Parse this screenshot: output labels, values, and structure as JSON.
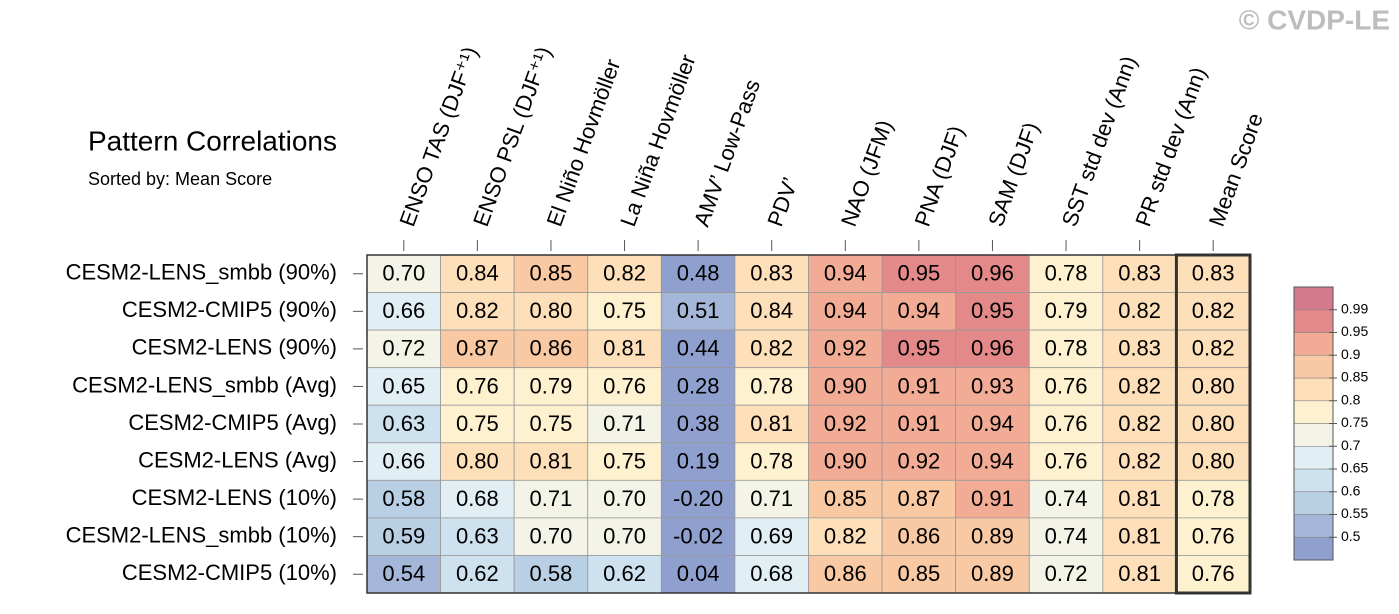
{
  "chart_data": {
    "type": "heatmap",
    "title": "Pattern Correlations",
    "subtitle": "Sorted by: Mean Score",
    "watermark": "© CVDP-LE",
    "categories": [
      "ENSO TAS (DJF⁺¹)",
      "ENSO PSL (DJF⁺¹)",
      "El Niño Hovmöller",
      "La Niña Hovmöller",
      "AMV’ Low-Pass",
      "PDV’",
      "NAO (JFM)",
      "PNA (DJF)",
      "SAM (DJF)",
      "SST std dev (Ann)",
      "PR std dev (Ann)",
      "Mean Score"
    ],
    "rows": [
      "CESM2-LENS_smbb (90%)",
      "CESM2-CMIP5 (90%)",
      "CESM2-LENS (90%)",
      "CESM2-LENS_smbb (Avg)",
      "CESM2-CMIP5 (Avg)",
      "CESM2-LENS (Avg)",
      "CESM2-LENS (10%)",
      "CESM2-LENS_smbb (10%)",
      "CESM2-CMIP5 (10%)"
    ],
    "values": [
      [
        0.7,
        0.84,
        0.85,
        0.82,
        0.48,
        0.83,
        0.94,
        0.95,
        0.96,
        0.78,
        0.83,
        0.83
      ],
      [
        0.66,
        0.82,
        0.8,
        0.75,
        0.51,
        0.84,
        0.94,
        0.94,
        0.95,
        0.79,
        0.82,
        0.82
      ],
      [
        0.72,
        0.87,
        0.86,
        0.81,
        0.44,
        0.82,
        0.92,
        0.95,
        0.96,
        0.78,
        0.83,
        0.82
      ],
      [
        0.65,
        0.76,
        0.79,
        0.76,
        0.28,
        0.78,
        0.9,
        0.91,
        0.93,
        0.76,
        0.82,
        0.8
      ],
      [
        0.63,
        0.75,
        0.75,
        0.71,
        0.38,
        0.81,
        0.92,
        0.91,
        0.94,
        0.76,
        0.82,
        0.8
      ],
      [
        0.66,
        0.8,
        0.81,
        0.75,
        0.19,
        0.78,
        0.9,
        0.92,
        0.94,
        0.76,
        0.82,
        0.8
      ],
      [
        0.58,
        0.68,
        0.71,
        0.7,
        -0.2,
        0.71,
        0.85,
        0.87,
        0.91,
        0.74,
        0.81,
        0.78
      ],
      [
        0.59,
        0.63,
        0.7,
        0.7,
        -0.02,
        0.69,
        0.82,
        0.86,
        0.89,
        0.74,
        0.81,
        0.76
      ],
      [
        0.54,
        0.62,
        0.58,
        0.62,
        0.04,
        0.68,
        0.86,
        0.85,
        0.89,
        0.72,
        0.81,
        0.76
      ]
    ],
    "value_labels": [
      [
        "0.70",
        "0.84",
        "0.85",
        "0.82",
        "0.48",
        "0.83",
        "0.94",
        "0.95",
        "0.96",
        "0.78",
        "0.83",
        "0.83"
      ],
      [
        "0.66",
        "0.82",
        "0.80",
        "0.75",
        "0.51",
        "0.84",
        "0.94",
        "0.94",
        "0.95",
        "0.79",
        "0.82",
        "0.82"
      ],
      [
        "0.72",
        "0.87",
        "0.86",
        "0.81",
        "0.44",
        "0.82",
        "0.92",
        "0.95",
        "0.96",
        "0.78",
        "0.83",
        "0.82"
      ],
      [
        "0.65",
        "0.76",
        "0.79",
        "0.76",
        "0.28",
        "0.78",
        "0.90",
        "0.91",
        "0.93",
        "0.76",
        "0.82",
        "0.80"
      ],
      [
        "0.63",
        "0.75",
        "0.75",
        "0.71",
        "0.38",
        "0.81",
        "0.92",
        "0.91",
        "0.94",
        "0.76",
        "0.82",
        "0.80"
      ],
      [
        "0.66",
        "0.80",
        "0.81",
        "0.75",
        "0.19",
        "0.78",
        "0.90",
        "0.92",
        "0.94",
        "0.76",
        "0.82",
        "0.80"
      ],
      [
        "0.58",
        "0.68",
        "0.71",
        "0.70",
        "-0.20",
        "0.71",
        "0.85",
        "0.87",
        "0.91",
        "0.74",
        "0.81",
        "0.78"
      ],
      [
        "0.59",
        "0.63",
        "0.70",
        "0.70",
        "-0.02",
        "0.69",
        "0.82",
        "0.86",
        "0.89",
        "0.74",
        "0.81",
        "0.76"
      ],
      [
        "0.54",
        "0.62",
        "0.58",
        "0.62",
        "0.04",
        "0.68",
        "0.86",
        "0.85",
        "0.89",
        "0.72",
        "0.81",
        "0.76"
      ]
    ],
    "colorbar": {
      "ticks": [
        0.5,
        0.55,
        0.6,
        0.65,
        0.7,
        0.75,
        0.8,
        0.85,
        0.9,
        0.95,
        0.99
      ],
      "colors": [
        "#8fa0cf",
        "#a5b7d8",
        "#b9cfe3",
        "#cde2ee",
        "#e1eef4",
        "#f3f3e8",
        "#fdf1cf",
        "#fde0b9",
        "#f9c9a3",
        "#f2ab94",
        "#e4898a",
        "#d57a8c"
      ]
    }
  }
}
